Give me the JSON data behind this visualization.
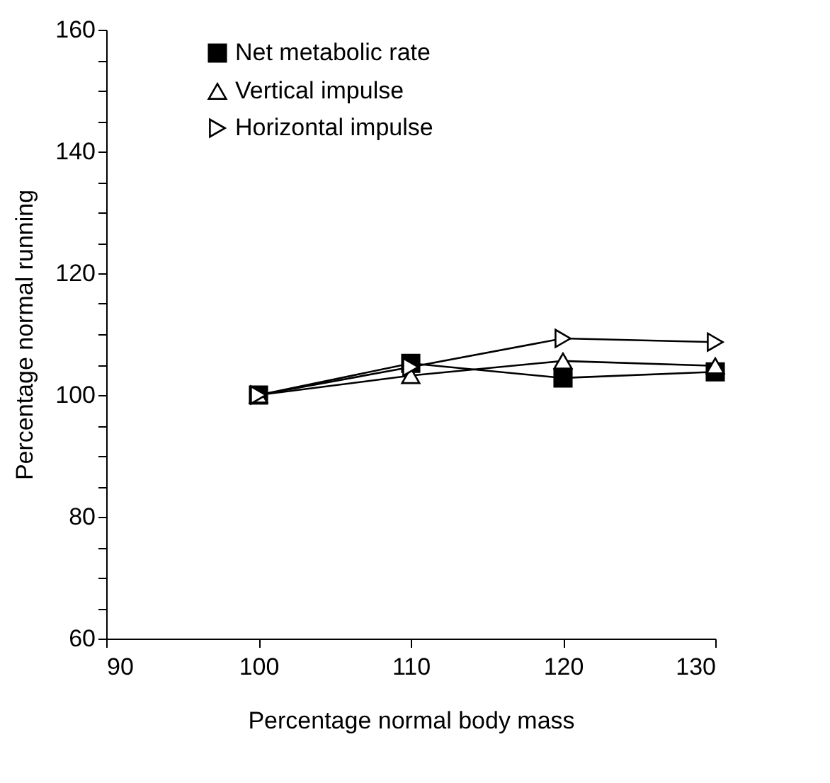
{
  "chart_data": {
    "type": "line",
    "xlabel": "Percentage normal body mass",
    "ylabel": "Percentage normal running",
    "x": [
      100,
      110,
      120,
      130
    ],
    "series": [
      {
        "name": "Net metabolic rate",
        "color": "#000000",
        "marker": "square",
        "values": [
          100,
          105.2,
          102.8,
          103.8
        ]
      },
      {
        "name": "Vertical impulse",
        "color": "#000000",
        "marker": "triangle",
        "values": [
          100,
          103.2,
          105.6,
          104.8
        ]
      },
      {
        "name": "Horizontal impulse",
        "color": "#000000",
        "marker": "triangle-right",
        "values": [
          100,
          104.6,
          109.3,
          108.7
        ]
      }
    ],
    "xlim": [
      90,
      130
    ],
    "xticks": [
      90,
      100,
      110,
      120,
      130
    ],
    "ylim": [
      60,
      160
    ],
    "yticks": [
      60,
      {
        "value": 65,
        "label": null
      },
      {
        "value": 70,
        "label": null
      },
      {
        "value": 75,
        "label": null
      },
      80,
      {
        "value": 85,
        "label": null
      },
      {
        "value": 90,
        "label": null
      },
      {
        "value": 95,
        "label": null
      },
      100,
      {
        "value": 105,
        "label": null
      },
      {
        "value": 110,
        "label": null
      },
      {
        "value": 115,
        "label": null
      },
      120,
      {
        "value": 125,
        "label": null
      },
      {
        "value": 130,
        "label": null
      },
      {
        "value": 135,
        "label": null
      },
      140,
      {
        "value": 145,
        "label": null
      },
      {
        "value": 150,
        "label": null
      },
      {
        "value": 155,
        "label": null
      },
      160
    ],
    "grid": false,
    "legend": "top left",
    "line_style": "solid"
  }
}
